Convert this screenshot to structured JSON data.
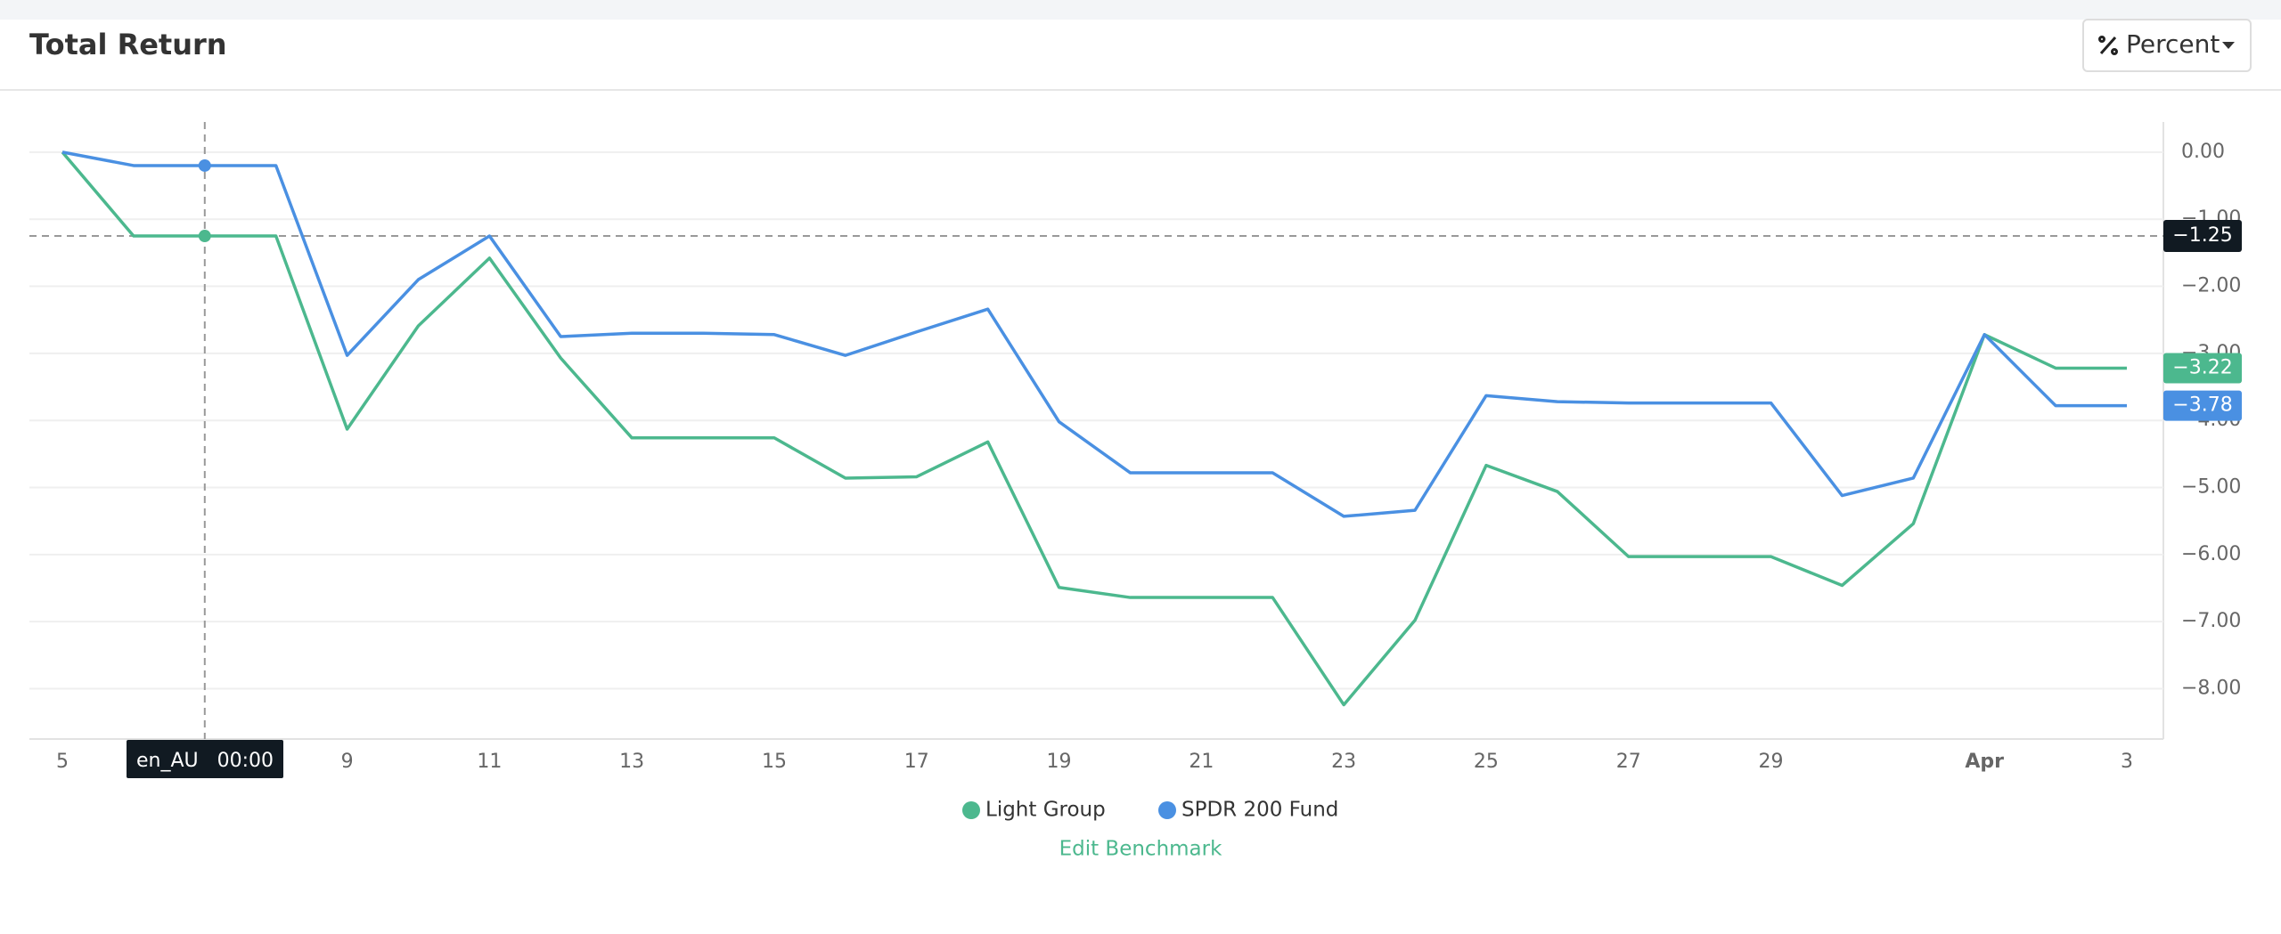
{
  "header": {
    "title": "Total Return",
    "unit_button": "Percent"
  },
  "chart_data": {
    "type": "line",
    "categories": [
      "5",
      null,
      null,
      null,
      "9",
      null,
      "11",
      null,
      "13",
      null,
      "15",
      null,
      "17",
      null,
      "19",
      null,
      "21",
      null,
      "23",
      null,
      "25",
      null,
      "27",
      null,
      "29",
      null,
      null,
      "Apr",
      null,
      "3"
    ],
    "series": [
      {
        "name": "Light Group",
        "color": "#4cb88e",
        "values": [
          0,
          -1.25,
          -1.25,
          -1.25,
          -4.13,
          -2.59,
          -1.58,
          -3.07,
          -4.26,
          -4.26,
          -4.26,
          -4.86,
          -4.84,
          -4.32,
          -6.49,
          -6.64,
          -6.64,
          -6.64,
          -8.24,
          -6.98,
          -4.67,
          -5.06,
          -6.03,
          -6.03,
          -6.03,
          -6.46,
          -5.54,
          -2.72,
          -3.22,
          -3.22
        ],
        "end_label": "−3.22"
      },
      {
        "name": "SPDR 200 Fund",
        "color": "#4a90e2",
        "values": [
          0,
          -0.2,
          -0.2,
          -0.2,
          -3.03,
          -1.9,
          -1.25,
          -2.75,
          -2.7,
          -2.7,
          -2.72,
          -3.03,
          -2.68,
          -2.34,
          -4.02,
          -4.78,
          -4.78,
          -4.78,
          -5.43,
          -5.34,
          -3.63,
          -3.72,
          -3.74,
          -3.74,
          -3.74,
          -5.12,
          -4.86,
          -2.72,
          -3.78,
          -3.78
        ],
        "end_label": "−3.78"
      }
    ],
    "ylim": [
      -8.75,
      0.45
    ],
    "yticks": [
      {
        "value": 0,
        "label": "0.00"
      },
      {
        "value": -1,
        "label": "−1.00"
      },
      {
        "value": -2,
        "label": "−2.00"
      },
      {
        "value": -3,
        "label": "−3.00"
      },
      {
        "value": -4,
        "label": "−4.00"
      },
      {
        "value": -5,
        "label": "−5.00"
      },
      {
        "value": -6,
        "label": "−6.00"
      },
      {
        "value": -7,
        "label": "−7.00"
      },
      {
        "value": -8,
        "label": "−8.00"
      }
    ],
    "grid": true,
    "crosshair": {
      "index": 2,
      "x_label": "en_AU   00:00",
      "y": -1.25,
      "y_label": "−1.25"
    },
    "link": "Edit Benchmark"
  }
}
